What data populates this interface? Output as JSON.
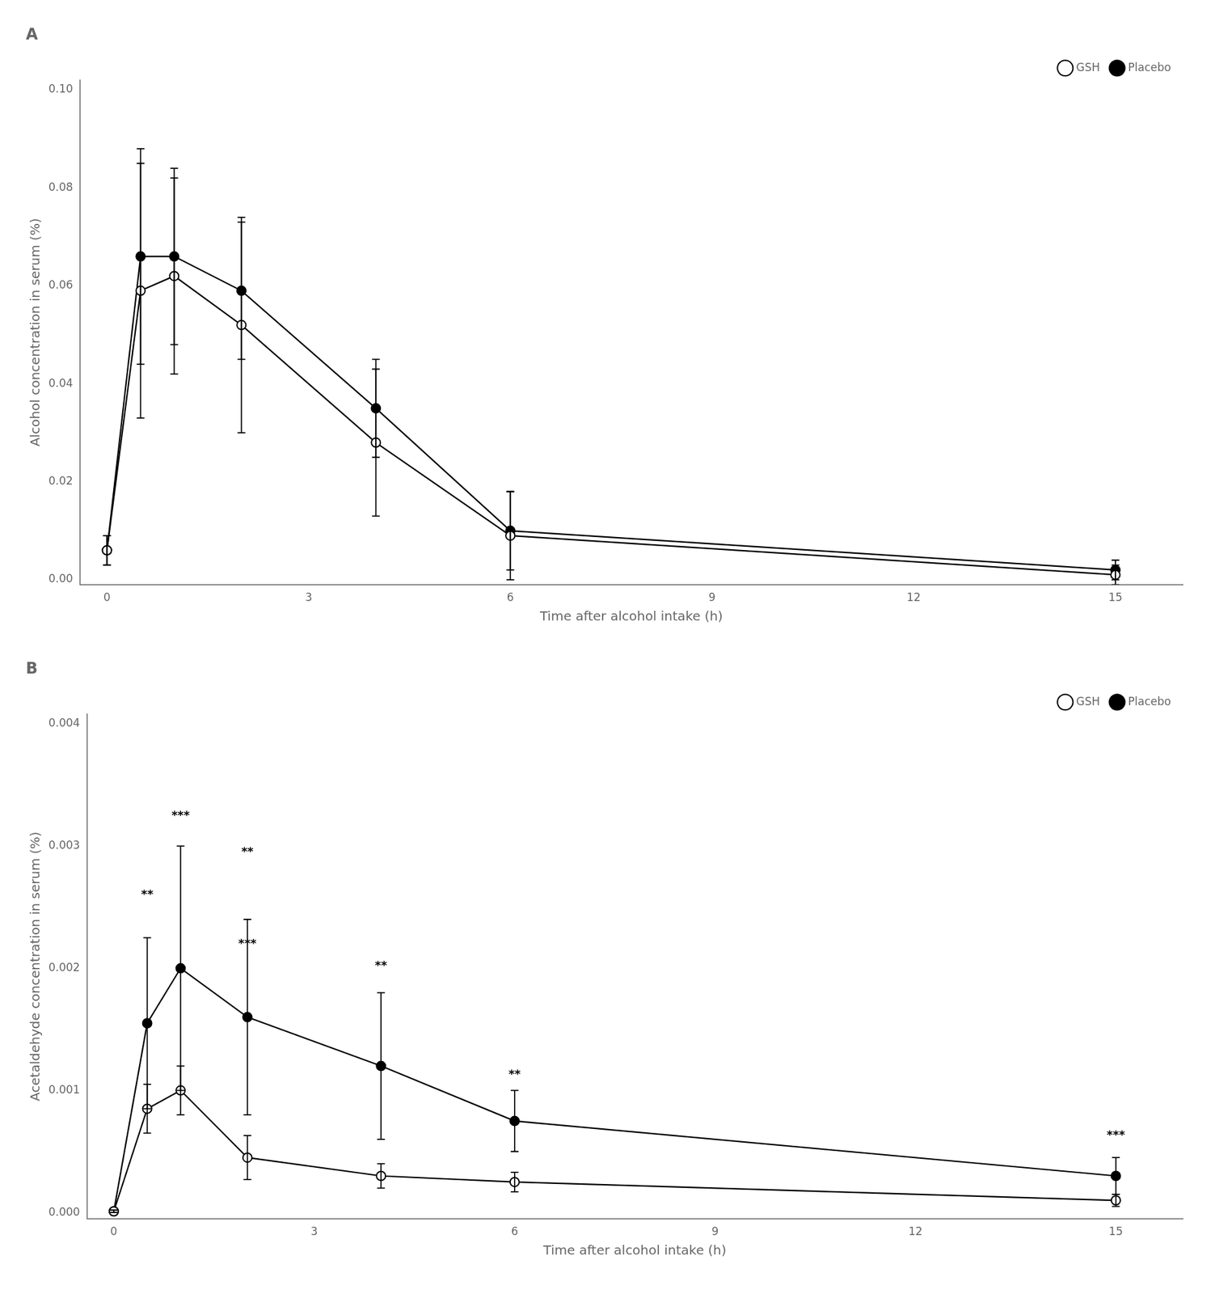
{
  "chart_data": [
    {
      "type": "line",
      "title": "A",
      "xlabel": "Time after alcohol intake (h)",
      "ylabel": "Alcohol concentration in serum (%)",
      "x": [
        0,
        0.5,
        1,
        2,
        4,
        6,
        15
      ],
      "series": [
        {
          "name": "GSH",
          "color": "#000000",
          "marker": "open_circle",
          "values": [
            0.006,
            0.059,
            0.062,
            0.052,
            0.028,
            0.009,
            0.001
          ],
          "errors": [
            0.003,
            0.026,
            0.02,
            0.022,
            0.015,
            0.009,
            0.002
          ]
        },
        {
          "name": "Placebo",
          "color": "#000000",
          "marker": "filled_circle",
          "values": [
            0.006,
            0.066,
            0.066,
            0.059,
            0.035,
            0.01,
            0.002
          ],
          "errors": [
            0.003,
            0.022,
            0.018,
            0.014,
            0.01,
            0.008,
            0.002
          ]
        }
      ],
      "xlim": [
        -0.4,
        16.0
      ],
      "xticks": [
        0,
        3,
        6,
        9,
        12,
        15
      ],
      "ylim": [
        -0.001,
        0.102
      ],
      "yticks": [
        {
          "value": 0.0,
          "label": "0.00"
        },
        0.02,
        0.04,
        0.06,
        0.08,
        {
          "value": 0.1,
          "label": "0.10"
        }
      ],
      "grid": false,
      "legend": "upper right"
    },
    {
      "type": "line",
      "title": "B",
      "xlabel": "Time after alcohol intake (h)",
      "ylabel": "Acetaldehyde concentration in serum (%)",
      "x": [
        0,
        0.5,
        1,
        2,
        4,
        6,
        15
      ],
      "series": [
        {
          "name": "GSH",
          "color": "#000000",
          "marker": "open_circle",
          "values": [
            1e-05,
            0.00085,
            0.001,
            0.00045,
            0.0003,
            0.00025,
            0.0001
          ],
          "errors": [
            1e-05,
            0.0002,
            0.0002,
            0.00018,
            0.0001,
            8e-05,
            5e-05
          ]
        },
        {
          "name": "Placebo",
          "color": "#000000",
          "marker": "filled_circle",
          "values": [
            1e-05,
            0.00155,
            0.002,
            0.0016,
            0.0012,
            0.00075,
            0.0003
          ],
          "errors": [
            1e-05,
            0.0007,
            0.001,
            0.0008,
            0.0006,
            0.00025,
            0.00015
          ]
        }
      ],
      "xlim": [
        -0.4,
        16.0
      ],
      "xticks": [
        0,
        3,
        6,
        9,
        12,
        15
      ],
      "ylim": [
        -5e-05,
        0.00408
      ],
      "yticks": [
        {
          "value": 0.0,
          "label": "0.000"
        },
        0.001,
        0.002,
        0.003,
        0.004
      ],
      "grid": false,
      "legend": "upper right",
      "annotations": [
        {
          "x": 0.5,
          "y": 0.00255,
          "text": "**"
        },
        {
          "x": 1,
          "y": 0.0032,
          "text": "***"
        },
        {
          "x": 2,
          "y": 0.0029,
          "text": "**"
        },
        {
          "x": 2,
          "y": 0.00215,
          "text": "***"
        },
        {
          "x": 4,
          "y": 0.00197,
          "text": "**"
        },
        {
          "x": 6,
          "y": 0.00108,
          "text": "**"
        },
        {
          "x": 15,
          "y": 0.00058,
          "text": "***"
        }
      ]
    }
  ]
}
